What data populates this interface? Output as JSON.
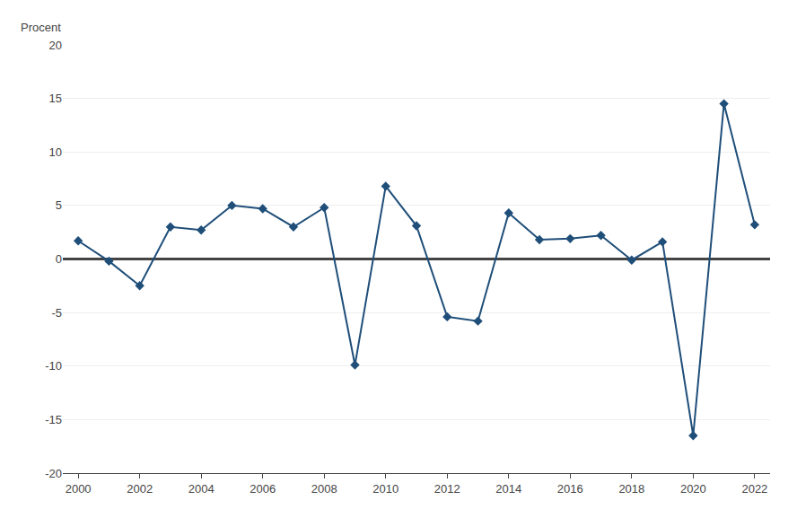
{
  "chart_data": {
    "type": "line",
    "ylabel": "Procent",
    "x": [
      2000,
      2001,
      2002,
      2003,
      2004,
      2005,
      2006,
      2007,
      2008,
      2009,
      2010,
      2011,
      2012,
      2013,
      2014,
      2015,
      2016,
      2017,
      2018,
      2019,
      2020,
      2021,
      2022
    ],
    "values": [
      1.7,
      -0.2,
      -2.5,
      3.0,
      2.7,
      5.0,
      4.7,
      3.0,
      4.8,
      -9.9,
      6.8,
      3.1,
      -5.4,
      -5.8,
      4.3,
      1.8,
      1.9,
      2.2,
      -0.1,
      1.6,
      -16.5,
      14.5,
      3.2
    ],
    "color": "#1F4E79",
    "marker": "diamond",
    "xlim": [
      1999.5,
      2022.5
    ],
    "xticks": [
      2000,
      2002,
      2004,
      2006,
      2008,
      2010,
      2012,
      2014,
      2016,
      2018,
      2020,
      2022
    ],
    "ylim": [
      -20,
      20
    ],
    "yticks": [
      -20,
      -15,
      -10,
      -5,
      0,
      5,
      10,
      15,
      20
    ],
    "grid": "y"
  }
}
